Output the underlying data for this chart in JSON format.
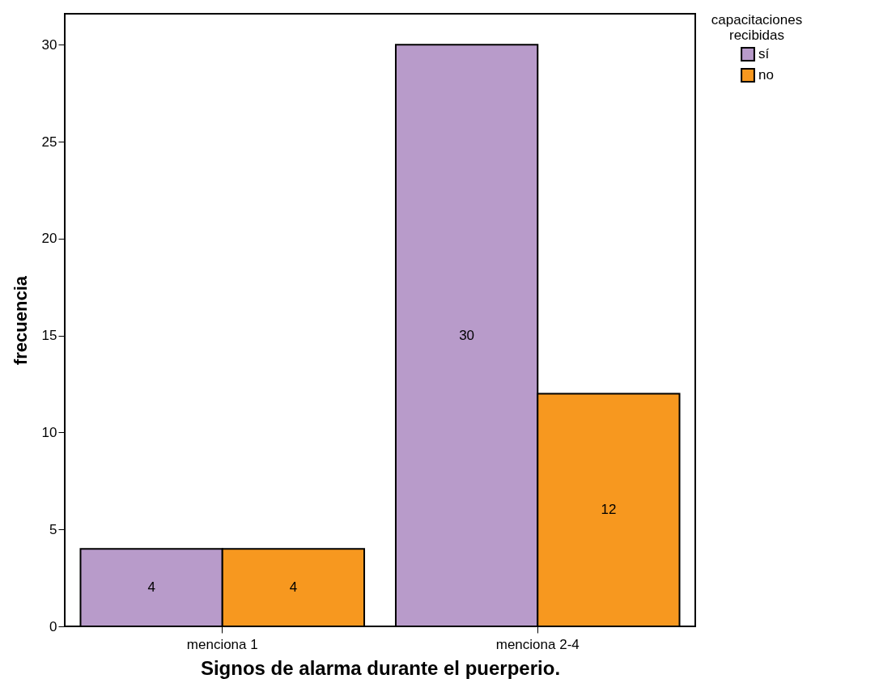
{
  "chart_data": {
    "type": "bar",
    "xlabel": "Signos de alarma durante el puerperio.",
    "ylabel": "frecuencia",
    "legend_title": "capacitaciones recibidas",
    "categories": [
      "menciona 1",
      "menciona 2-4"
    ],
    "series": [
      {
        "name": "sí",
        "color": "#b89bca",
        "values": [
          4,
          30
        ]
      },
      {
        "name": "no",
        "color": "#f7981f",
        "values": [
          4,
          12
        ]
      }
    ],
    "ylim": [
      0,
      31.6
    ],
    "yticks": [
      0,
      5,
      10,
      15,
      20,
      25,
      30
    ],
    "grid": false,
    "legend": "top right",
    "data_labels": true
  }
}
